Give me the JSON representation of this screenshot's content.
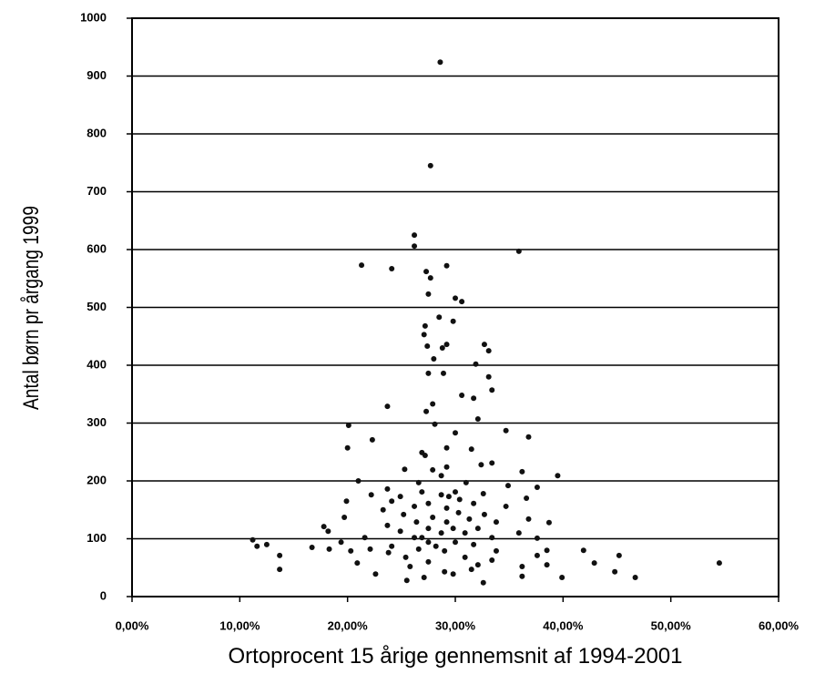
{
  "chart_data": {
    "type": "scatter",
    "x_label": "Ortoprocent 15 årige gennemsnit af 1994-2001",
    "y_label": "Antal børn pr årgang 1999",
    "color": "#111111",
    "grid": true,
    "xlim": [
      0,
      60
    ],
    "ylim": [
      0,
      1000
    ],
    "xticks": [
      {
        "value": 0,
        "label": "0,00%"
      },
      {
        "value": 10,
        "label": "10,00%"
      },
      {
        "value": 20,
        "label": "20,00%"
      },
      {
        "value": 30,
        "label": "30,00%"
      },
      {
        "value": 40,
        "label": "40,00%"
      },
      {
        "value": 50,
        "label": "50,00%"
      },
      {
        "value": 60,
        "label": "60,00%"
      }
    ],
    "yticks": [
      0,
      100,
      200,
      300,
      400,
      500,
      600,
      700,
      800,
      900,
      1000
    ],
    "x": [
      28.6,
      27.7,
      26.2,
      26.2,
      35.9,
      21.3,
      24.1,
      29.2,
      27.3,
      27.7,
      27.5,
      30.0,
      30.6,
      28.5,
      27.2,
      27.1,
      29.8,
      32.7,
      33.1,
      27.4,
      29.2,
      28.8,
      28.0,
      31.9,
      27.5,
      28.9,
      33.1,
      30.6,
      33.4,
      31.7,
      23.7,
      27.9,
      27.3,
      32.1,
      20.1,
      28.1,
      34.7,
      30.0,
      36.8,
      22.3,
      20.0,
      29.2,
      31.5,
      26.9,
      27.2,
      33.4,
      32.4,
      29.2,
      27.9,
      25.3,
      36.2,
      39.5,
      28.7,
      21.0,
      26.6,
      31.0,
      34.9,
      37.6,
      23.7,
      26.9,
      30.0,
      32.6,
      22.2,
      28.7,
      24.9,
      36.6,
      19.9,
      24.1,
      27.5,
      31.7,
      26.2,
      34.7,
      29.2,
      23.3,
      30.3,
      25.2,
      32.7,
      27.9,
      19.7,
      31.3,
      36.8,
      26.4,
      29.2,
      33.8,
      38.7,
      23.7,
      17.8,
      29.8,
      27.5,
      32.1,
      18.2,
      24.9,
      28.7,
      30.9,
      35.9,
      21.6,
      26.2,
      33.4,
      37.6,
      11.2,
      27.5,
      30.0,
      19.4,
      11.6,
      12.5,
      24.1,
      31.7,
      16.7,
      18.3,
      20.3,
      22.1,
      26.6,
      41.9,
      38.5,
      29.0,
      33.8,
      23.8,
      13.7,
      45.2,
      30.9,
      37.6,
      25.4,
      33.4,
      20.9,
      42.9,
      54.5,
      27.5,
      38.5,
      32.1,
      25.8,
      36.2,
      13.7,
      22.6,
      29.0,
      44.8,
      36.2,
      29.8,
      39.9,
      27.1,
      46.7,
      25.5,
      32.6,
      29.4,
      30.4,
      28.2,
      26.9,
      31.5
    ],
    "values": [
      924,
      745,
      625,
      606,
      597,
      573,
      567,
      572,
      562,
      551,
      523,
      516,
      510,
      483,
      468,
      453,
      476,
      436,
      425,
      433,
      436,
      430,
      411,
      402,
      386,
      386,
      380,
      348,
      357,
      343,
      329,
      333,
      320,
      307,
      296,
      298,
      287,
      283,
      276,
      271,
      257,
      257,
      255,
      249,
      244,
      231,
      228,
      224,
      219,
      220,
      216,
      209,
      209,
      200,
      197,
      197,
      192,
      189,
      186,
      181,
      181,
      178,
      176,
      176,
      173,
      170,
      165,
      165,
      161,
      161,
      156,
      156,
      153,
      150,
      145,
      142,
      142,
      137,
      137,
      134,
      134,
      129,
      129,
      129,
      128,
      123,
      121,
      118,
      118,
      118,
      113,
      113,
      110,
      110,
      110,
      102,
      102,
      102,
      101,
      98,
      94,
      94,
      94,
      87,
      90,
      87,
      90,
      85,
      82,
      79,
      82,
      82,
      80,
      80,
      79,
      79,
      76,
      71,
      71,
      68,
      71,
      68,
      63,
      58,
      58,
      58,
      60,
      55,
      55,
      52,
      52,
      47,
      39,
      43,
      43,
      35,
      39,
      33,
      33,
      33,
      28,
      24,
      173,
      168,
      87,
      102,
      47
    ]
  }
}
